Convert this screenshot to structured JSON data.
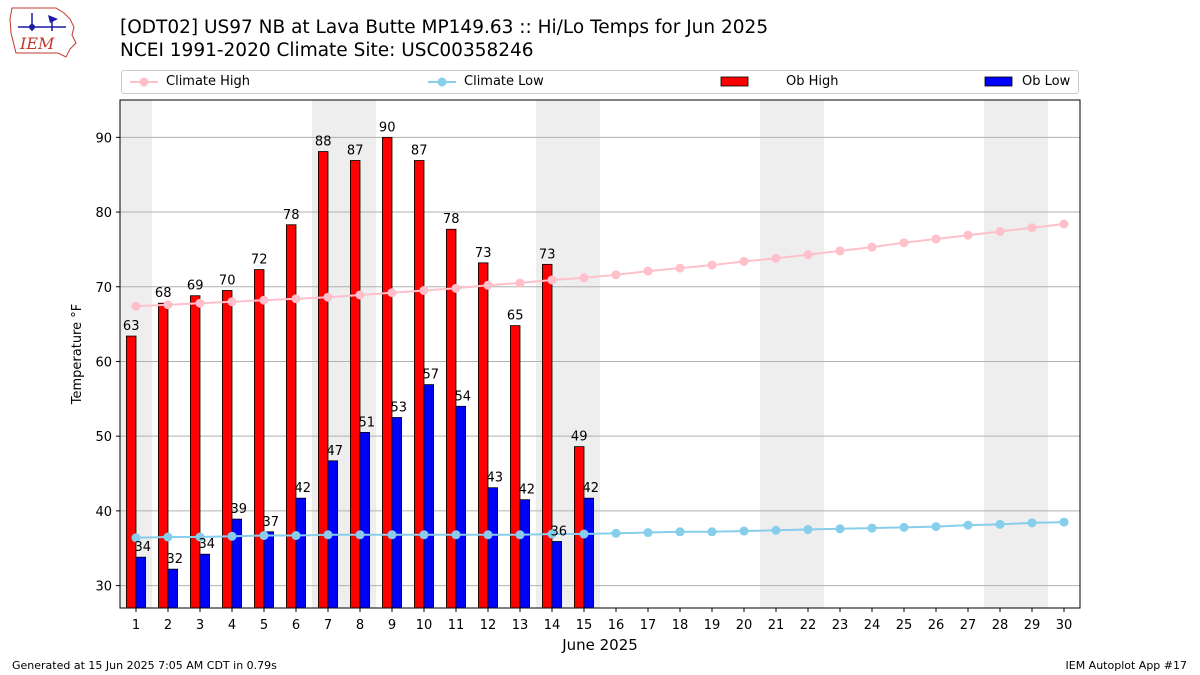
{
  "header": {
    "title_line1": "[ODT02] US97 NB at Lava Butte MP149.63  :: Hi/Lo Temps for Jun 2025",
    "title_line2": "NCEI 1991-2020 Climate Site: USC00358246",
    "logo_text": "IEM"
  },
  "footer": {
    "generated": "Generated at 15 Jun 2025 7:05 AM CDT in 0.79s",
    "app": "IEM Autoplot App #17"
  },
  "colors": {
    "ob_high": "#ff0000",
    "ob_low": "#0000ff",
    "climate_high": "#ffc0cb",
    "climate_low": "#87ceeb",
    "weekend_shade": "#eeeeee",
    "grid": "#b0b0b0"
  },
  "chart_data": {
    "type": "bar",
    "xlabel": "June 2025",
    "ylabel": "Temperature °F",
    "ylim": [
      27,
      95
    ],
    "yticks": [
      30,
      40,
      50,
      60,
      70,
      80,
      90
    ],
    "xlim": [
      0.5,
      30.5
    ],
    "grid": "horizontal",
    "legend_position": "top (above plot, spanning width)",
    "weekend_days_shaded": [
      1,
      7,
      8,
      14,
      15,
      21,
      22,
      28,
      29
    ],
    "days": [
      1,
      2,
      3,
      4,
      5,
      6,
      7,
      8,
      9,
      10,
      11,
      12,
      13,
      14,
      15,
      16,
      17,
      18,
      19,
      20,
      21,
      22,
      23,
      24,
      25,
      26,
      27,
      28,
      29,
      30
    ],
    "series": [
      {
        "name": "Climate High",
        "kind": "line",
        "values": [
          67.4,
          67.6,
          67.8,
          68.0,
          68.2,
          68.4,
          68.6,
          68.9,
          69.2,
          69.5,
          69.8,
          70.2,
          70.5,
          70.9,
          71.2,
          71.6,
          72.1,
          72.5,
          72.9,
          73.4,
          73.8,
          74.3,
          74.8,
          75.3,
          75.9,
          76.4,
          76.9,
          77.4,
          77.9,
          78.4
        ]
      },
      {
        "name": "Climate Low",
        "kind": "line",
        "values": [
          36.4,
          36.5,
          36.5,
          36.6,
          36.7,
          36.7,
          36.8,
          36.8,
          36.8,
          36.8,
          36.8,
          36.8,
          36.8,
          36.9,
          36.9,
          37.0,
          37.1,
          37.2,
          37.2,
          37.3,
          37.4,
          37.5,
          37.6,
          37.7,
          37.8,
          37.9,
          38.1,
          38.2,
          38.4,
          38.5
        ]
      },
      {
        "name": "Ob High",
        "kind": "bar",
        "values": [
          63.4,
          67.8,
          68.8,
          69.5,
          72.3,
          78.3,
          88.1,
          86.9,
          90.0,
          86.9,
          77.7,
          73.2,
          64.8,
          73.0,
          48.6
        ],
        "labels": [
          "63",
          "68",
          "69",
          "70",
          "72",
          "78",
          "88",
          "87",
          "90",
          "87",
          "78",
          "73",
          "65",
          "73",
          "49"
        ]
      },
      {
        "name": "Ob Low",
        "kind": "bar",
        "values": [
          33.8,
          32.2,
          34.2,
          38.9,
          37.2,
          41.7,
          46.7,
          50.5,
          52.5,
          56.9,
          54.0,
          43.1,
          41.5,
          35.9,
          41.7
        ],
        "labels": [
          "34",
          "32",
          "34",
          "39",
          "37",
          "42",
          "47",
          "51",
          "53",
          "57",
          "54",
          "43",
          "42",
          "36",
          "42"
        ]
      }
    ]
  }
}
